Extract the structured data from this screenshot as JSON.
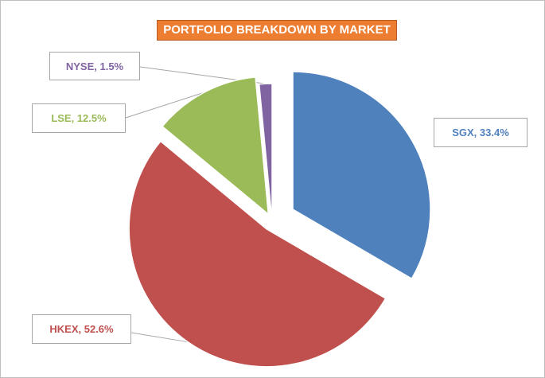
{
  "chart_data": {
    "type": "pie",
    "title": "PORTFOLIO BREAKDOWN BY MARKET",
    "categories": [
      "SGX",
      "HKEX",
      "LSE",
      "NYSE"
    ],
    "values": [
      33.4,
      52.6,
      12.5,
      1.5
    ],
    "unit": "%",
    "labels": [
      "SGX, 33.4%",
      "HKEX, 52.6%",
      "LSE, 12.5%",
      "NYSE, 1.5%"
    ],
    "colors": [
      "#4F81BD",
      "#C0504D",
      "#9BBB59",
      "#8064A2"
    ],
    "title_background": "#ED7D31",
    "legend": "none",
    "exploded_slices": [
      "SGX",
      "HKEX",
      "LSE"
    ]
  }
}
